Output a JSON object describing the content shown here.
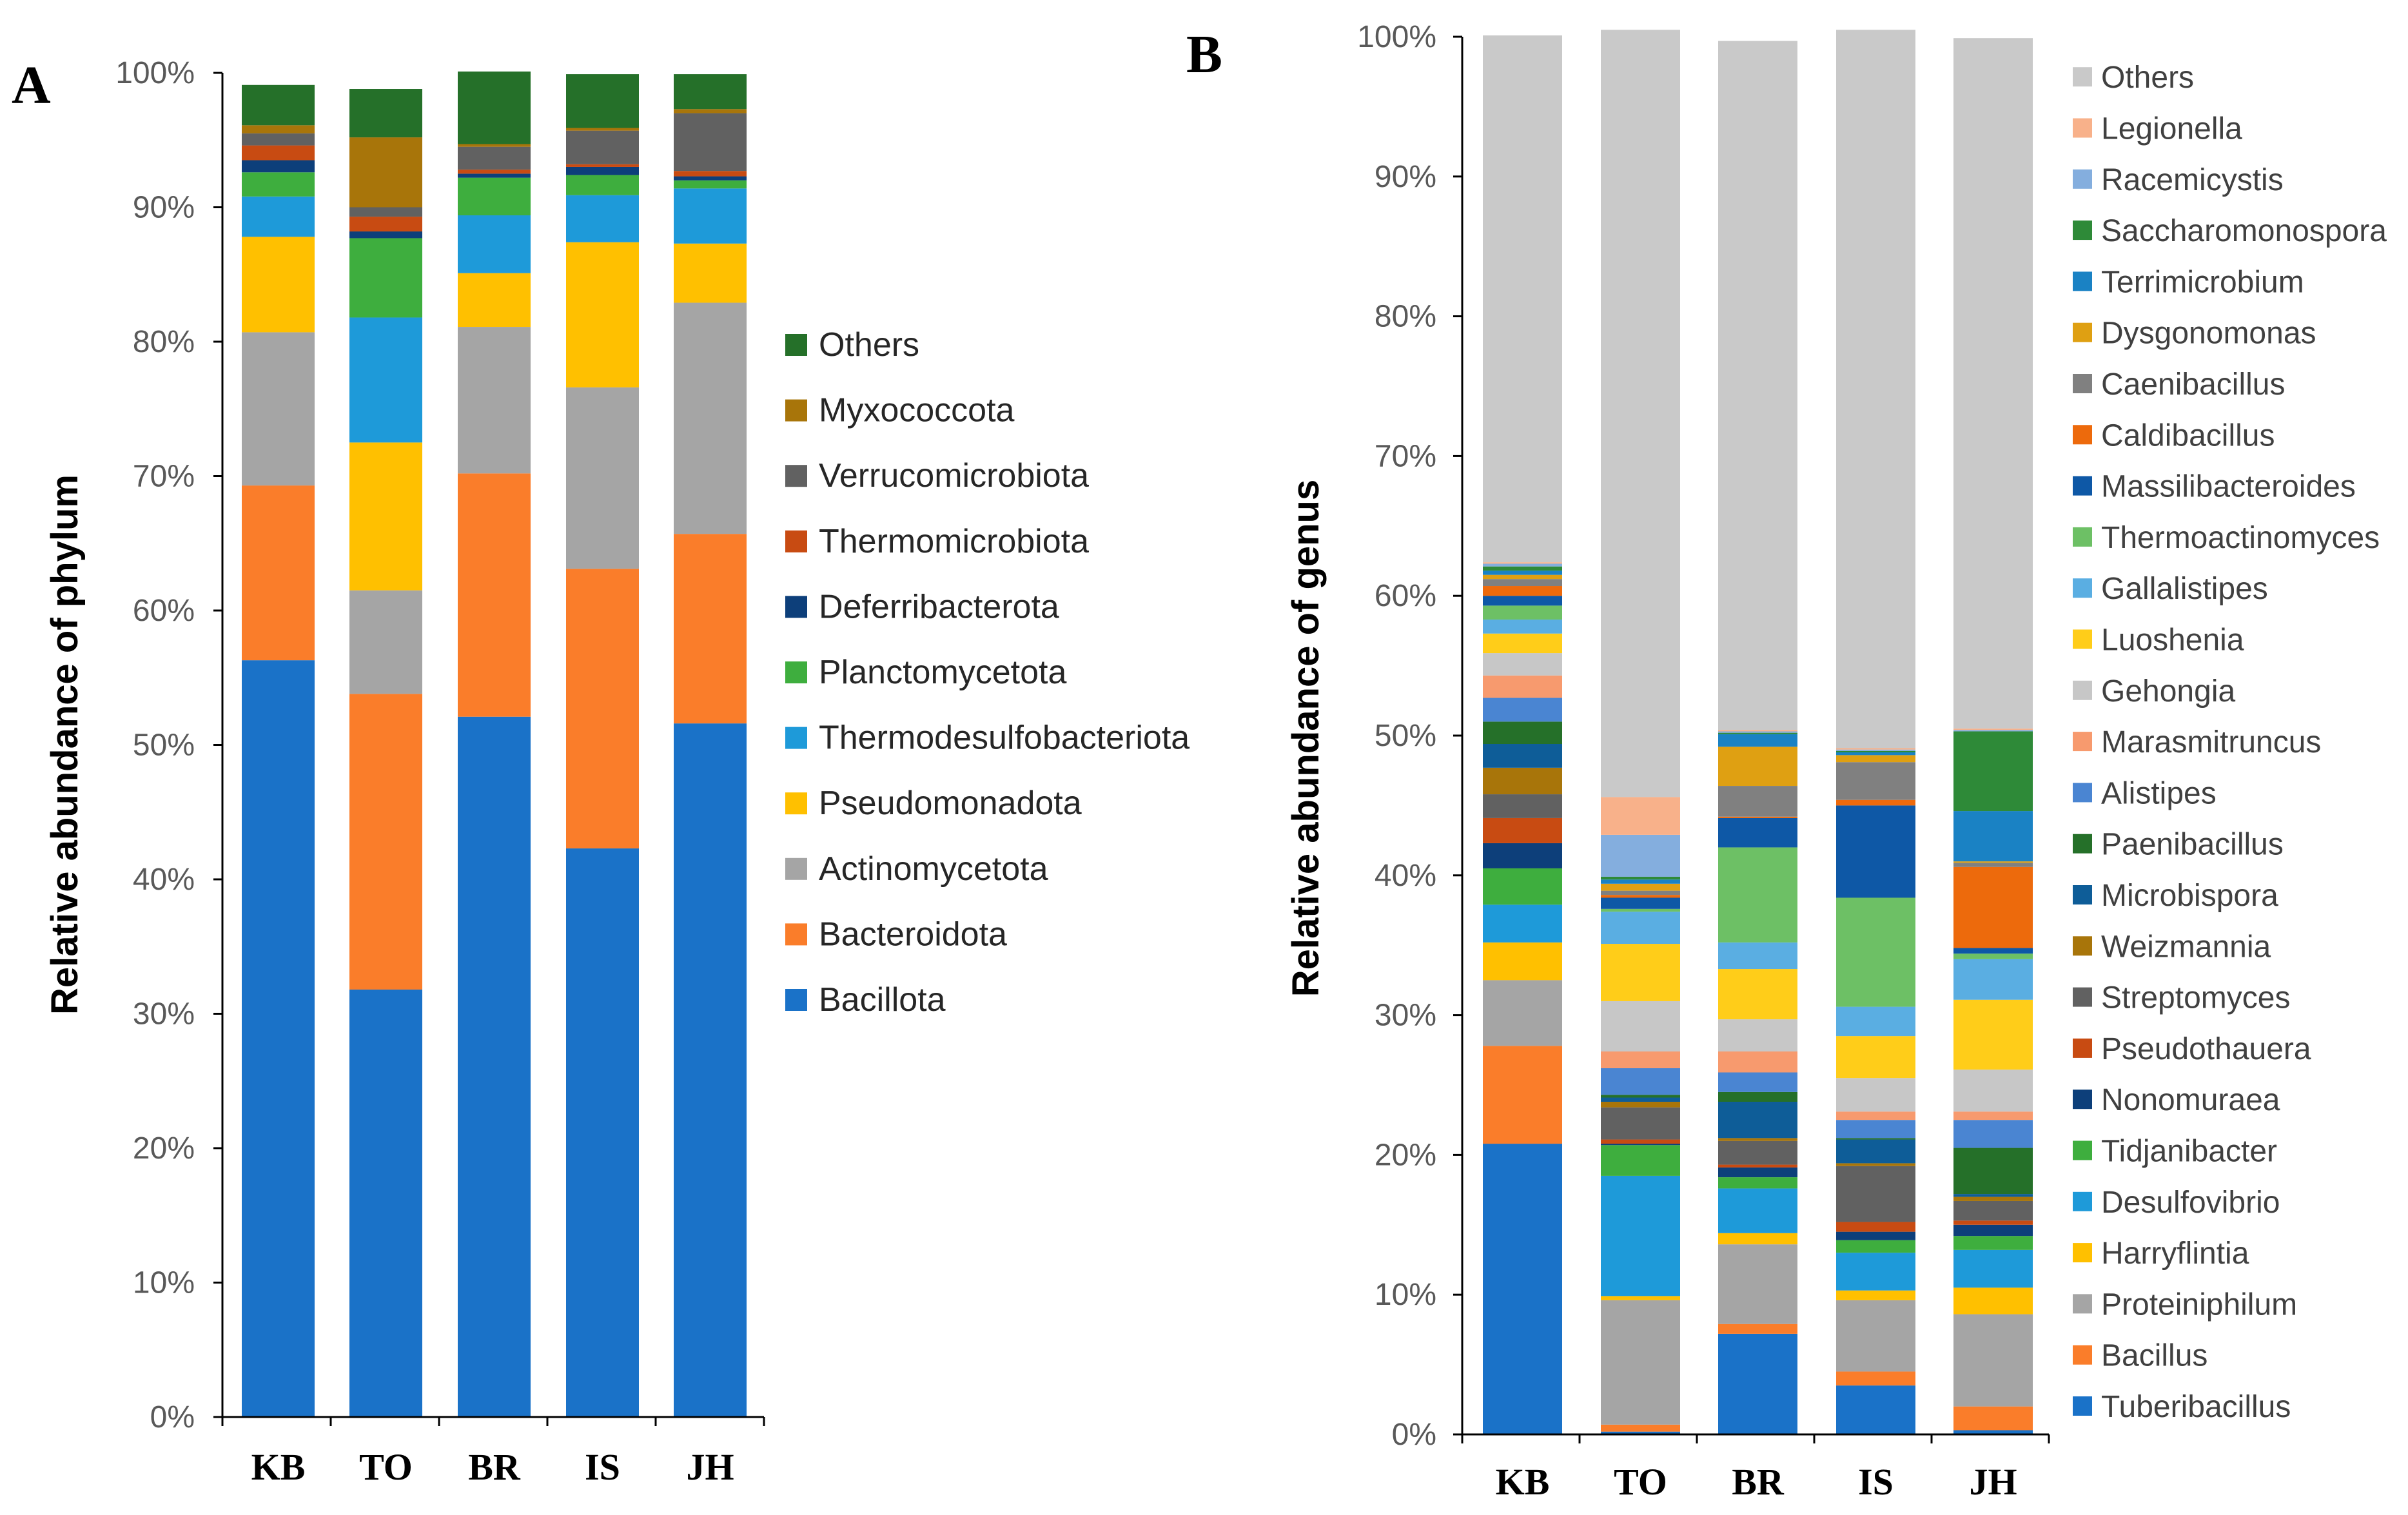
{
  "chart_data": [
    {
      "panel": "A",
      "type": "bar",
      "stacked": true,
      "title": "",
      "xlabel": "",
      "ylabel": "Relative abundance of phylum",
      "ylim": [
        0,
        100
      ],
      "yticks": [
        "0%",
        "10%",
        "20%",
        "30%",
        "40%",
        "50%",
        "60%",
        "70%",
        "80%",
        "90%",
        "100%"
      ],
      "categories": [
        "KB",
        "TO",
        "BR",
        "IS",
        "JH"
      ],
      "legend_position": "right",
      "series": [
        {
          "name": "Bacillota",
          "color": "#1a72c8",
          "values": [
            56.3,
            31.8,
            52.1,
            42.3,
            51.6
          ]
        },
        {
          "name": "Bacteroidota",
          "color": "#fa7d2a",
          "values": [
            13.0,
            22.0,
            18.1,
            20.8,
            14.1
          ]
        },
        {
          "name": "Actinomycetota",
          "color": "#a5a5a5",
          "values": [
            11.4,
            7.7,
            10.9,
            13.5,
            17.2
          ]
        },
        {
          "name": "Pseudomonadota",
          "color": "#ffc000",
          "values": [
            7.1,
            11.0,
            4.0,
            10.8,
            4.4
          ]
        },
        {
          "name": "Thermodesulfobacteriota",
          "color": "#1e9ad9",
          "values": [
            3.0,
            9.3,
            4.3,
            3.5,
            4.1
          ]
        },
        {
          "name": "Planctomycetota",
          "color": "#3eae3e",
          "values": [
            1.8,
            5.9,
            2.8,
            1.5,
            0.6
          ]
        },
        {
          "name": "Deferribacterota",
          "color": "#0d3f7a",
          "values": [
            0.9,
            0.5,
            0.3,
            0.6,
            0.3
          ]
        },
        {
          "name": "Thermomicrobiota",
          "color": "#c84b12",
          "values": [
            1.1,
            1.1,
            0.3,
            0.2,
            0.4
          ]
        },
        {
          "name": "Verrucomicrobiota",
          "color": "#616161",
          "values": [
            0.9,
            0.7,
            1.7,
            2.5,
            4.3
          ]
        },
        {
          "name": "Myxococcota",
          "color": "#a8750a",
          "values": [
            0.6,
            5.2,
            0.2,
            0.2,
            0.3
          ]
        },
        {
          "name": "Others",
          "color": "#257029",
          "values": [
            3.0,
            3.6,
            5.4,
            4.0,
            2.6
          ]
        }
      ]
    },
    {
      "panel": "B",
      "type": "bar",
      "stacked": true,
      "title": "",
      "xlabel": "",
      "ylabel": "Relative abundance of genus",
      "ylim": [
        0,
        100
      ],
      "yticks": [
        "0%",
        "10%",
        "20%",
        "30%",
        "40%",
        "50%",
        "60%",
        "70%",
        "80%",
        "90%",
        "100%"
      ],
      "categories": [
        "KB",
        "TO",
        "BR",
        "IS",
        "JH"
      ],
      "legend_position": "right",
      "series": [
        {
          "name": "Tuberibacillus",
          "color": "#1a72c8",
          "values": [
            20.8,
            0.2,
            7.2,
            3.5,
            0.3
          ]
        },
        {
          "name": "Bacillus",
          "color": "#fa7d2a",
          "values": [
            7.0,
            0.5,
            0.7,
            1.0,
            1.7
          ]
        },
        {
          "name": "Proteiniphilum",
          "color": "#a5a5a5",
          "values": [
            4.7,
            8.9,
            5.7,
            5.1,
            6.6
          ]
        },
        {
          "name": "Harryflintia",
          "color": "#ffc000",
          "values": [
            2.7,
            0.3,
            0.8,
            0.7,
            1.9
          ]
        },
        {
          "name": "Desulfovibrio",
          "color": "#1e9ad9",
          "values": [
            2.7,
            8.6,
            3.2,
            2.7,
            2.7
          ]
        },
        {
          "name": "Tidjanibacter",
          "color": "#3eae3e",
          "values": [
            2.6,
            2.2,
            0.8,
            0.9,
            1.0
          ]
        },
        {
          "name": "Nonomuraea",
          "color": "#0d3f7a",
          "values": [
            1.8,
            0.1,
            0.7,
            0.6,
            0.8
          ]
        },
        {
          "name": "Pseudothauera",
          "color": "#c84b12",
          "values": [
            1.8,
            0.3,
            0.2,
            0.7,
            0.3
          ]
        },
        {
          "name": "Streptomyces",
          "color": "#616161",
          "values": [
            1.7,
            2.3,
            1.7,
            4.0,
            1.4
          ]
        },
        {
          "name": "Weizmannia",
          "color": "#a8750a",
          "values": [
            1.9,
            0.4,
            0.2,
            0.2,
            0.3
          ]
        },
        {
          "name": "Microbispora",
          "color": "#0e5d98",
          "values": [
            1.7,
            0.3,
            2.6,
            1.7,
            0.2
          ]
        },
        {
          "name": "Paenibacillus",
          "color": "#257029",
          "values": [
            1.6,
            0.2,
            0.7,
            0.1,
            3.3
          ]
        },
        {
          "name": "Alistipes",
          "color": "#4a85d2",
          "values": [
            1.7,
            1.9,
            1.4,
            1.3,
            2.0
          ]
        },
        {
          "name": "Marasmitruncus",
          "color": "#f79a6e",
          "values": [
            1.6,
            1.2,
            1.5,
            0.6,
            0.6
          ]
        },
        {
          "name": "Gehongia",
          "color": "#c7c7c7",
          "values": [
            1.6,
            3.6,
            2.3,
            2.4,
            3.0
          ]
        },
        {
          "name": "Luoshenia",
          "color": "#ffcd19",
          "values": [
            1.4,
            4.1,
            3.6,
            3.0,
            5.0
          ]
        },
        {
          "name": "Gallalistipes",
          "color": "#5aaee2",
          "values": [
            1.0,
            2.3,
            1.9,
            2.1,
            2.9
          ]
        },
        {
          "name": "Thermoactinomyces",
          "color": "#6dc065",
          "values": [
            1.0,
            0.2,
            6.8,
            7.8,
            0.4
          ]
        },
        {
          "name": "Massilibacteroides",
          "color": "#0e58a6",
          "values": [
            0.7,
            0.8,
            2.1,
            6.6,
            0.4
          ]
        },
        {
          "name": "Caldibacillus",
          "color": "#ed6a0c",
          "values": [
            0.7,
            0.2,
            0.1,
            0.4,
            5.8
          ]
        },
        {
          "name": "Caenibacillus",
          "color": "#808080",
          "values": [
            0.5,
            0.3,
            2.2,
            2.7,
            0.3
          ]
        },
        {
          "name": "Dysgonomonas",
          "color": "#dfa012",
          "values": [
            0.3,
            0.5,
            2.8,
            0.5,
            0.1
          ]
        },
        {
          "name": "Terrimicrobium",
          "color": "#1a82c4",
          "values": [
            0.3,
            0.3,
            0.9,
            0.2,
            3.6
          ]
        },
        {
          "name": "Saccharomonospora",
          "color": "#2e8a38",
          "values": [
            0.3,
            0.2,
            0.1,
            0.1,
            5.7
          ]
        },
        {
          "name": "Racemicystis",
          "color": "#84aede",
          "values": [
            0.2,
            3.0,
            0.1,
            0.1,
            0.1
          ]
        },
        {
          "name": "Legionella",
          "color": "#f8b18a",
          "values": [
            0.1,
            2.7,
            0.1,
            0.1,
            0.1
          ]
        },
        {
          "name": "Others",
          "color": "#c9c9c9",
          "values": [
            37.7,
            54.9,
            49.3,
            51.4,
            49.4
          ]
        }
      ]
    }
  ]
}
